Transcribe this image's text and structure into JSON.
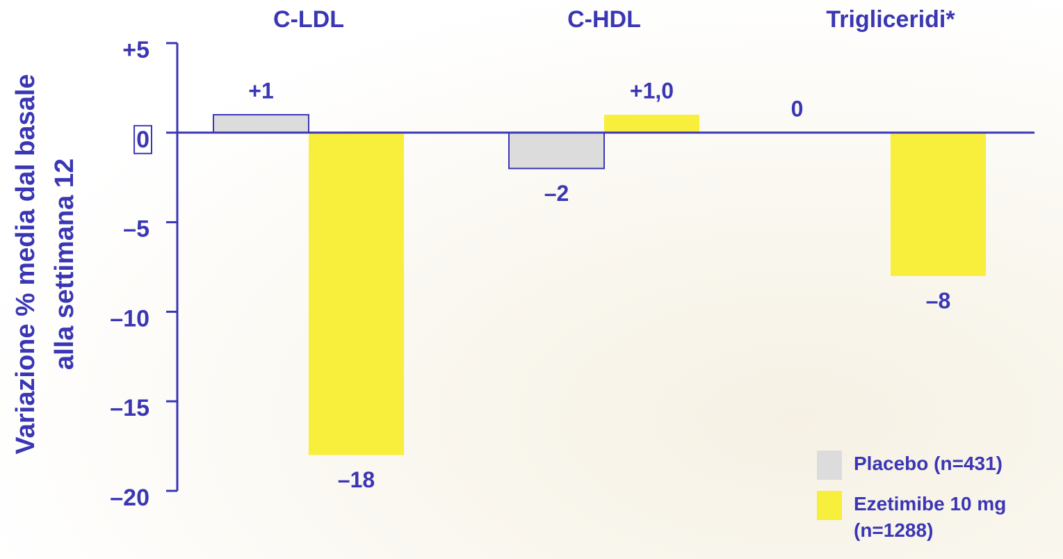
{
  "chart_data": {
    "type": "bar",
    "y_label": "Variazione % media dal basale alla settimana 12",
    "categories": [
      "C-LDL",
      "C-HDL",
      "Trigliceridi*"
    ],
    "series": [
      {
        "name": "Placebo (n=431)",
        "color": "#dcdcdc",
        "values": [
          1,
          -2,
          0
        ],
        "value_labels": [
          "+1",
          "–2",
          "0"
        ]
      },
      {
        "name": "Ezetimibe 10 mg (n=1288)",
        "color": "#f8ee3c",
        "values": [
          -18,
          1.0,
          -8
        ],
        "value_labels": [
          "–18",
          "+1,0",
          "–8"
        ]
      }
    ],
    "ylim": [
      -20,
      5
    ],
    "yticks": [
      {
        "value": -20,
        "label": "–20"
      },
      {
        "value": -15,
        "label": "–15"
      },
      {
        "value": -10,
        "label": "–10"
      },
      {
        "value": -5,
        "label": "–5"
      },
      0,
      {
        "value": 5,
        "label": "+5"
      }
    ],
    "legend": "bottom-right"
  }
}
